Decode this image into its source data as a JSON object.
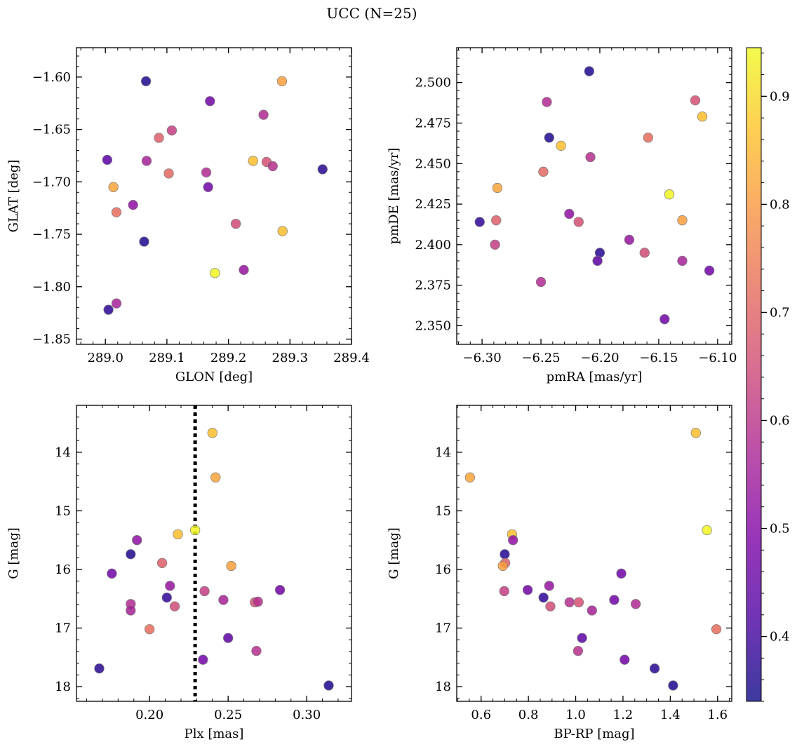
{
  "figure": {
    "title": "UCC (N=25)"
  },
  "colorbar": {
    "colormap": "plasma",
    "range": [
      0.34,
      0.945
    ],
    "ticks": [
      0.4,
      0.5,
      0.6,
      0.7,
      0.8,
      0.9
    ],
    "tick_labels": [
      "0.4",
      "0.5",
      "0.6",
      "0.7",
      "0.8",
      "0.9"
    ]
  },
  "chart_data": [
    {
      "type": "scatter",
      "id": "glon-glat",
      "xlabel": "GLON [deg]",
      "ylabel": "GLAT [deg]",
      "xlim": [
        288.953,
        289.4
      ],
      "ylim": [
        -1.855,
        -1.572
      ],
      "y_inverted": false,
      "xticks": [
        289.0,
        289.1,
        289.2,
        289.3,
        289.4
      ],
      "xtick_labels": [
        "289.0",
        "289.1",
        "289.2",
        "289.3",
        "289.4"
      ],
      "yticks": [
        -1.6,
        -1.65,
        -1.7,
        -1.75,
        -1.8,
        -1.85
      ],
      "ytick_labels": [
        "−1.60",
        "−1.65",
        "−1.70",
        "−1.75",
        "−1.80",
        "−1.85"
      ],
      "x_minor_step": 0.02,
      "y_minor_step": 0.01,
      "grid": false,
      "points": [
        {
          "x": 289.066,
          "y": -1.604,
          "c": 0.36
        },
        {
          "x": 289.17,
          "y": -1.623,
          "c": 0.47
        },
        {
          "x": 289.287,
          "y": -1.604,
          "c": 0.81
        },
        {
          "x": 289.257,
          "y": -1.636,
          "c": 0.58
        },
        {
          "x": 289.108,
          "y": -1.651,
          "c": 0.62
        },
        {
          "x": 289.087,
          "y": -1.658,
          "c": 0.69
        },
        {
          "x": 289.003,
          "y": -1.679,
          "c": 0.44
        },
        {
          "x": 289.067,
          "y": -1.68,
          "c": 0.56
        },
        {
          "x": 289.103,
          "y": -1.692,
          "c": 0.71
        },
        {
          "x": 289.164,
          "y": -1.691,
          "c": 0.58
        },
        {
          "x": 289.24,
          "y": -1.68,
          "c": 0.86
        },
        {
          "x": 289.262,
          "y": -1.681,
          "c": 0.66
        },
        {
          "x": 289.272,
          "y": -1.685,
          "c": 0.59
        },
        {
          "x": 289.353,
          "y": -1.688,
          "c": 0.37
        },
        {
          "x": 289.167,
          "y": -1.705,
          "c": 0.47
        },
        {
          "x": 289.013,
          "y": -1.705,
          "c": 0.82
        },
        {
          "x": 289.045,
          "y": -1.722,
          "c": 0.52
        },
        {
          "x": 289.018,
          "y": -1.729,
          "c": 0.72
        },
        {
          "x": 289.212,
          "y": -1.74,
          "c": 0.65
        },
        {
          "x": 289.288,
          "y": -1.747,
          "c": 0.86
        },
        {
          "x": 289.063,
          "y": -1.757,
          "c": 0.36
        },
        {
          "x": 289.225,
          "y": -1.784,
          "c": 0.53
        },
        {
          "x": 289.178,
          "y": -1.787,
          "c": 0.94
        },
        {
          "x": 289.018,
          "y": -1.816,
          "c": 0.56
        },
        {
          "x": 289.005,
          "y": -1.822,
          "c": 0.38
        }
      ]
    },
    {
      "type": "scatter",
      "id": "pmra-pmde",
      "xlabel": "pmRA [mas/yr]",
      "ylabel": "pmDE [mas/yr]",
      "xlim": [
        -6.3215,
        -6.088
      ],
      "ylim": [
        2.3385,
        2.5215
      ],
      "y_inverted": false,
      "xticks": [
        -6.3,
        -6.25,
        -6.2,
        -6.15,
        -6.1
      ],
      "xtick_labels": [
        "−6.30",
        "−6.25",
        "−6.20",
        "−6.15",
        "−6.10"
      ],
      "yticks": [
        2.35,
        2.375,
        2.4,
        2.425,
        2.45,
        2.475,
        2.5
      ],
      "ytick_labels": [
        "2.350",
        "2.375",
        "2.400",
        "2.425",
        "2.450",
        "2.475",
        "2.500"
      ],
      "x_minor_step": 0.01,
      "y_minor_step": 0.005,
      "grid": false,
      "points": [
        {
          "x": -6.209,
          "y": 2.507,
          "c": 0.36
        },
        {
          "x": -6.245,
          "y": 2.488,
          "c": 0.58
        },
        {
          "x": -6.119,
          "y": 2.489,
          "c": 0.66
        },
        {
          "x": -6.113,
          "y": 2.479,
          "c": 0.86
        },
        {
          "x": -6.243,
          "y": 2.466,
          "c": 0.36
        },
        {
          "x": -6.233,
          "y": 2.461,
          "c": 0.86
        },
        {
          "x": -6.159,
          "y": 2.466,
          "c": 0.72
        },
        {
          "x": -6.208,
          "y": 2.454,
          "c": 0.59
        },
        {
          "x": -6.248,
          "y": 2.445,
          "c": 0.71
        },
        {
          "x": -6.287,
          "y": 2.435,
          "c": 0.82
        },
        {
          "x": -6.141,
          "y": 2.431,
          "c": 0.94
        },
        {
          "x": -6.226,
          "y": 2.419,
          "c": 0.52
        },
        {
          "x": -6.302,
          "y": 2.414,
          "c": 0.38
        },
        {
          "x": -6.288,
          "y": 2.415,
          "c": 0.69
        },
        {
          "x": -6.218,
          "y": 2.414,
          "c": 0.66
        },
        {
          "x": -6.13,
          "y": 2.415,
          "c": 0.81
        },
        {
          "x": -6.175,
          "y": 2.403,
          "c": 0.53
        },
        {
          "x": -6.289,
          "y": 2.4,
          "c": 0.62
        },
        {
          "x": -6.162,
          "y": 2.395,
          "c": 0.65
        },
        {
          "x": -6.2,
          "y": 2.395,
          "c": 0.37
        },
        {
          "x": -6.202,
          "y": 2.39,
          "c": 0.44
        },
        {
          "x": -6.13,
          "y": 2.39,
          "c": 0.56
        },
        {
          "x": -6.107,
          "y": 2.384,
          "c": 0.47
        },
        {
          "x": -6.25,
          "y": 2.377,
          "c": 0.58
        },
        {
          "x": -6.145,
          "y": 2.354,
          "c": 0.47
        }
      ]
    },
    {
      "type": "scatter",
      "id": "plx-g",
      "xlabel": "Plx [mas]",
      "ylabel": "G [mag]",
      "xlim": [
        0.1535,
        0.3285
      ],
      "ylim": [
        18.25,
        13.2
      ],
      "y_inverted": true,
      "xticks": [
        0.2,
        0.25,
        0.3
      ],
      "xtick_labels": [
        "0.20",
        "0.25",
        "0.30"
      ],
      "yticks": [
        14,
        15,
        16,
        17,
        18
      ],
      "ytick_labels": [
        "14",
        "15",
        "16",
        "17",
        "18"
      ],
      "x_minor_step": 0.01,
      "y_minor_step": 0.2,
      "grid": false,
      "vline": {
        "x": 0.229,
        "style": "dotted",
        "color": "#000000"
      },
      "points": [
        {
          "x": 0.24,
          "y": 13.67,
          "c": 0.86
        },
        {
          "x": 0.242,
          "y": 14.43,
          "c": 0.82
        },
        {
          "x": 0.229,
          "y": 15.33,
          "c": 0.94
        },
        {
          "x": 0.218,
          "y": 15.4,
          "c": 0.86
        },
        {
          "x": 0.192,
          "y": 15.5,
          "c": 0.52
        },
        {
          "x": 0.188,
          "y": 15.74,
          "c": 0.36
        },
        {
          "x": 0.208,
          "y": 15.89,
          "c": 0.69
        },
        {
          "x": 0.252,
          "y": 15.94,
          "c": 0.81
        },
        {
          "x": 0.176,
          "y": 16.07,
          "c": 0.47
        },
        {
          "x": 0.213,
          "y": 16.28,
          "c": 0.53
        },
        {
          "x": 0.283,
          "y": 16.35,
          "c": 0.47
        },
        {
          "x": 0.235,
          "y": 16.37,
          "c": 0.62
        },
        {
          "x": 0.211,
          "y": 16.48,
          "c": 0.38
        },
        {
          "x": 0.247,
          "y": 16.52,
          "c": 0.56
        },
        {
          "x": 0.267,
          "y": 16.56,
          "c": 0.66
        },
        {
          "x": 0.269,
          "y": 16.55,
          "c": 0.59
        },
        {
          "x": 0.188,
          "y": 16.59,
          "c": 0.58
        },
        {
          "x": 0.216,
          "y": 16.63,
          "c": 0.65
        },
        {
          "x": 0.188,
          "y": 16.7,
          "c": 0.56
        },
        {
          "x": 0.2,
          "y": 17.02,
          "c": 0.72
        },
        {
          "x": 0.25,
          "y": 17.17,
          "c": 0.44
        },
        {
          "x": 0.268,
          "y": 17.39,
          "c": 0.59
        },
        {
          "x": 0.234,
          "y": 17.54,
          "c": 0.47
        },
        {
          "x": 0.168,
          "y": 17.69,
          "c": 0.37
        },
        {
          "x": 0.314,
          "y": 17.98,
          "c": 0.36
        }
      ]
    },
    {
      "type": "scatter",
      "id": "bprp-g",
      "xlabel": "BP-RP [mag]",
      "ylabel": "G [mag]",
      "xlim": [
        0.497,
        1.66
      ],
      "ylim": [
        18.25,
        13.2
      ],
      "y_inverted": true,
      "xticks": [
        0.6,
        0.8,
        1.0,
        1.2,
        1.4,
        1.6
      ],
      "xtick_labels": [
        "0.6",
        "0.8",
        "1.0",
        "1.2",
        "1.4",
        "1.6"
      ],
      "x_minor_step": 0.05,
      "yticks": [
        14,
        15,
        16,
        17,
        18
      ],
      "ytick_labels": [
        "14",
        "15",
        "16",
        "17",
        "18"
      ],
      "y_minor_step": 0.2,
      "grid": false,
      "points": [
        {
          "x": 1.508,
          "y": 13.67,
          "c": 0.86
        },
        {
          "x": 0.553,
          "y": 14.43,
          "c": 0.82
        },
        {
          "x": 1.555,
          "y": 15.33,
          "c": 0.94
        },
        {
          "x": 0.731,
          "y": 15.4,
          "c": 0.86
        },
        {
          "x": 0.735,
          "y": 15.5,
          "c": 0.52
        },
        {
          "x": 0.7,
          "y": 15.74,
          "c": 0.36
        },
        {
          "x": 0.702,
          "y": 15.89,
          "c": 0.69
        },
        {
          "x": 0.692,
          "y": 15.94,
          "c": 0.81
        },
        {
          "x": 1.193,
          "y": 16.07,
          "c": 0.47
        },
        {
          "x": 0.888,
          "y": 16.28,
          "c": 0.53
        },
        {
          "x": 0.797,
          "y": 16.35,
          "c": 0.47
        },
        {
          "x": 0.698,
          "y": 16.37,
          "c": 0.62
        },
        {
          "x": 0.864,
          "y": 16.48,
          "c": 0.38
        },
        {
          "x": 1.163,
          "y": 16.52,
          "c": 0.47
        },
        {
          "x": 0.974,
          "y": 16.56,
          "c": 0.59
        },
        {
          "x": 1.013,
          "y": 16.56,
          "c": 0.66
        },
        {
          "x": 1.254,
          "y": 16.59,
          "c": 0.58
        },
        {
          "x": 0.893,
          "y": 16.63,
          "c": 0.65
        },
        {
          "x": 1.069,
          "y": 16.7,
          "c": 0.56
        },
        {
          "x": 1.595,
          "y": 17.02,
          "c": 0.72
        },
        {
          "x": 1.027,
          "y": 17.17,
          "c": 0.44
        },
        {
          "x": 1.01,
          "y": 17.39,
          "c": 0.59
        },
        {
          "x": 1.207,
          "y": 17.54,
          "c": 0.47
        },
        {
          "x": 1.334,
          "y": 17.69,
          "c": 0.37
        },
        {
          "x": 1.412,
          "y": 17.98,
          "c": 0.36
        }
      ]
    }
  ]
}
